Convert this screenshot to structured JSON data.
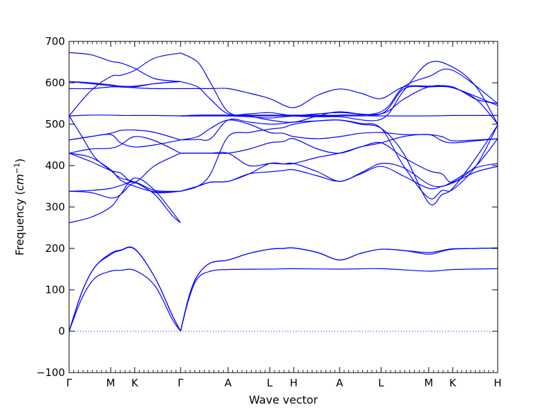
{
  "chart_data": {
    "type": "line",
    "title": "",
    "xlabel": "Wave vector",
    "ylabel_text": "Frequency (",
    "ylabel_unit": "cm",
    "ylabel_exp": "−1",
    "ylabel_close": ")",
    "ylim": [
      -100,
      700
    ],
    "yticks": [
      -100,
      0,
      100,
      200,
      300,
      400,
      500,
      600,
      700
    ],
    "xlim": [
      0,
      1
    ],
    "xticks": [
      {
        "label": "Γ",
        "x": 0.0
      },
      {
        "label": "M",
        "x": 0.097
      },
      {
        "label": "K",
        "x": 0.153
      },
      {
        "label": "Γ",
        "x": 0.26
      },
      {
        "label": "A",
        "x": 0.371
      },
      {
        "label": "L",
        "x": 0.468
      },
      {
        "label": "H",
        "x": 0.524
      },
      {
        "label": "A",
        "x": 0.631
      },
      {
        "label": "L",
        "x": 0.728
      },
      {
        "label": "M",
        "x": 0.839
      },
      {
        "label": "K",
        "x": 0.895
      },
      {
        "label": "H",
        "x": 1.0
      }
    ],
    "line_color": "#0000ff",
    "zero_line_color": "#0000ff",
    "series": [
      {
        "x": [
          0,
          0.03,
          0.06,
          0.097,
          0.12,
          0.153,
          0.2,
          0.24,
          0.26
        ],
        "values": [
          0,
          95,
          155,
          185,
          195,
          198,
          130,
          40,
          0
        ]
      },
      {
        "x": [
          0,
          0.03,
          0.06,
          0.097,
          0.12,
          0.153,
          0.2,
          0.24,
          0.26
        ],
        "values": [
          0,
          95,
          155,
          188,
          196,
          199,
          130,
          40,
          0
        ]
      },
      {
        "x": [
          0,
          0.03,
          0.06,
          0.097,
          0.12,
          0.153,
          0.2,
          0.24,
          0.26
        ],
        "values": [
          0,
          80,
          128,
          145,
          147,
          147,
          110,
          30,
          0
        ]
      },
      {
        "x": [
          0.26,
          0.28,
          0.3,
          0.33,
          0.371,
          0.42,
          0.468,
          0.5,
          0.524,
          0.58,
          0.631,
          0.68,
          0.728,
          0.78,
          0.839,
          0.87,
          0.895,
          0.95,
          1.0
        ],
        "values": [
          0,
          85,
          135,
          165,
          172,
          188,
          198,
          200,
          201,
          190,
          172,
          188,
          198,
          195,
          190,
          195,
          199,
          200,
          201
        ]
      },
      {
        "x": [
          0.26,
          0.28,
          0.3,
          0.33,
          0.371,
          0.42,
          0.468,
          0.5,
          0.524,
          0.58,
          0.631,
          0.68,
          0.728,
          0.78,
          0.839,
          0.87,
          0.895,
          0.95,
          1.0
        ],
        "values": [
          0,
          85,
          135,
          165,
          172,
          188,
          198,
          200,
          201,
          190,
          172,
          188,
          198,
          195,
          186,
          193,
          198,
          200,
          201
        ]
      },
      {
        "x": [
          0.26,
          0.28,
          0.3,
          0.33,
          0.371,
          0.468,
          0.524,
          0.631,
          0.728,
          0.839,
          0.895,
          1.0
        ],
        "values": [
          0,
          80,
          128,
          145,
          149,
          150,
          151,
          150,
          151,
          145,
          149,
          151
        ]
      },
      {
        "x": [
          0,
          0.05,
          0.097,
          0.12,
          0.153,
          0.2,
          0.26
        ],
        "values": [
          262,
          275,
          300,
          330,
          370,
          340,
          262
        ]
      },
      {
        "x": [
          0,
          0.05,
          0.097,
          0.12,
          0.153,
          0.2,
          0.26
        ],
        "values": [
          338,
          340,
          345,
          352,
          360,
          340,
          338
        ]
      },
      {
        "x": [
          0,
          0.05,
          0.097,
          0.12,
          0.153,
          0.2,
          0.26
        ],
        "values": [
          338,
          335,
          322,
          330,
          358,
          335,
          338
        ]
      },
      {
        "x": [
          0,
          0.05,
          0.097,
          0.12,
          0.153,
          0.2,
          0.26
        ],
        "values": [
          430,
          420,
          390,
          365,
          350,
          337,
          338
        ]
      },
      {
        "x": [
          0,
          0.05,
          0.097,
          0.12,
          0.153,
          0.2,
          0.26
        ],
        "values": [
          430,
          410,
          388,
          382,
          360,
          400,
          430
        ]
      },
      {
        "x": [
          0,
          0.05,
          0.097,
          0.12,
          0.153,
          0.2,
          0.26
        ],
        "values": [
          430,
          440,
          442,
          450,
          470,
          460,
          430
        ]
      },
      {
        "x": [
          0,
          0.05,
          0.097,
          0.12,
          0.153,
          0.2,
          0.26
        ],
        "values": [
          462,
          470,
          475,
          455,
          445,
          450,
          462
        ]
      },
      {
        "x": [
          0,
          0.05,
          0.097,
          0.12,
          0.153,
          0.2,
          0.26
        ],
        "values": [
          462,
          470,
          478,
          485,
          486,
          480,
          462
        ]
      },
      {
        "x": [
          0,
          0.05,
          0.097,
          0.12,
          0.153,
          0.2,
          0.26
        ],
        "values": [
          520,
          522,
          522,
          521,
          521,
          521,
          520
        ]
      },
      {
        "x": [
          0,
          0.03,
          0.06,
          0.097,
          0.12,
          0.153,
          0.2,
          0.24,
          0.26
        ],
        "values": [
          520,
          470,
          420,
          388,
          370,
          360,
          330,
          280,
          262
        ]
      },
      {
        "x": [
          0,
          0.05,
          0.097,
          0.12,
          0.153,
          0.2,
          0.26
        ],
        "values": [
          586,
          586,
          590,
          590,
          588,
          586,
          586
        ]
      },
      {
        "x": [
          0,
          0.05,
          0.097,
          0.12,
          0.153,
          0.2,
          0.26
        ],
        "values": [
          603,
          598,
          593,
          590,
          590,
          598,
          603
        ]
      },
      {
        "x": [
          0,
          0.05,
          0.097,
          0.12,
          0.153,
          0.2,
          0.26
        ],
        "values": [
          603,
          600,
          595,
          592,
          592,
          598,
          603
        ]
      },
      {
        "x": [
          0,
          0.05,
          0.097,
          0.12,
          0.153,
          0.2,
          0.26
        ],
        "values": [
          520,
          580,
          615,
          618,
          630,
          660,
          672
        ]
      },
      {
        "x": [
          0,
          0.05,
          0.097,
          0.12,
          0.153,
          0.2,
          0.26
        ],
        "values": [
          673,
          668,
          652,
          648,
          635,
          610,
          603
        ]
      },
      {
        "x": [
          0.26,
          0.3,
          0.33,
          0.371,
          0.42,
          0.468,
          0.5,
          0.524,
          0.58,
          0.631,
          0.68,
          0.728,
          0.78,
          0.839,
          0.87,
          0.895,
          0.95,
          1.0
        ],
        "values": [
          338,
          350,
          360,
          362,
          380,
          385,
          388,
          390,
          375,
          362,
          380,
          398,
          375,
          345,
          350,
          358,
          385,
          398
        ]
      },
      {
        "x": [
          0.26,
          0.3,
          0.33,
          0.371,
          0.42,
          0.468,
          0.5,
          0.524,
          0.58,
          0.631,
          0.68,
          0.728,
          0.78,
          0.839,
          0.87,
          0.895,
          0.95,
          1.0
        ],
        "values": [
          338,
          350,
          360,
          362,
          380,
          405,
          404,
          405,
          385,
          362,
          382,
          405,
          395,
          355,
          350,
          362,
          395,
          405
        ]
      },
      {
        "x": [
          0.26,
          0.3,
          0.33,
          0.371,
          0.42,
          0.468,
          0.5,
          0.524,
          0.58,
          0.631,
          0.68,
          0.728,
          0.78,
          0.839,
          0.87,
          0.895,
          0.95,
          1.0
        ],
        "values": [
          430,
          430,
          430,
          430,
          440,
          455,
          458,
          465,
          440,
          430,
          445,
          455,
          470,
          475,
          460,
          455,
          460,
          465
        ]
      },
      {
        "x": [
          0.26,
          0.3,
          0.33,
          0.371,
          0.42,
          0.468,
          0.5,
          0.524,
          0.58,
          0.631,
          0.68,
          0.728,
          0.78,
          0.839,
          0.87,
          0.895,
          0.95,
          1.0
        ],
        "values": [
          430,
          430,
          430,
          430,
          400,
          405,
          404,
          405,
          420,
          430,
          445,
          455,
          420,
          388,
          380,
          360,
          400,
          465
        ]
      },
      {
        "x": [
          0.26,
          0.3,
          0.33,
          0.371,
          0.42,
          0.468,
          0.5,
          0.524,
          0.58,
          0.631,
          0.68,
          0.728,
          0.78,
          0.839,
          0.87,
          0.895,
          0.95,
          1.0
        ],
        "values": [
          338,
          350,
          380,
          470,
          480,
          488,
          492,
          500,
          508,
          510,
          500,
          490,
          430,
          310,
          330,
          345,
          420,
          498
        ]
      },
      {
        "x": [
          0.26,
          0.3,
          0.33,
          0.371,
          0.42,
          0.468,
          0.5,
          0.524,
          0.58,
          0.631,
          0.68,
          0.728,
          0.78,
          0.839,
          0.87,
          0.895,
          0.95,
          1.0
        ],
        "values": [
          462,
          463,
          465,
          510,
          505,
          500,
          502,
          505,
          508,
          510,
          502,
          490,
          400,
          322,
          340,
          342,
          400,
          498
        ]
      },
      {
        "x": [
          0.26,
          0.3,
          0.33,
          0.371,
          0.42,
          0.468,
          0.5,
          0.524,
          0.58,
          0.631,
          0.68,
          0.728,
          0.78,
          0.839,
          0.87,
          0.895,
          0.95,
          1.0
        ],
        "values": [
          462,
          470,
          490,
          510,
          500,
          480,
          478,
          470,
          465,
          470,
          478,
          480,
          475,
          475,
          470,
          460,
          462,
          465
        ]
      },
      {
        "x": [
          0.26,
          0.3,
          0.371,
          0.468,
          0.524,
          0.631,
          0.728,
          0.839,
          0.895,
          1.0
        ],
        "values": [
          520,
          520,
          520,
          520,
          520,
          520,
          520,
          520,
          521,
          521
        ]
      },
      {
        "x": [
          0.26,
          0.3,
          0.371,
          0.42,
          0.468,
          0.524,
          0.58,
          0.631,
          0.728,
          0.78,
          0.839,
          0.895,
          1.0
        ],
        "values": [
          520,
          520,
          520,
          518,
          515,
          520,
          525,
          528,
          525,
          560,
          590,
          588,
          545
        ]
      },
      {
        "x": [
          0.26,
          0.3,
          0.371,
          0.42,
          0.468,
          0.524,
          0.58,
          0.631,
          0.728,
          0.78,
          0.839,
          0.895,
          1.0
        ],
        "values": [
          520,
          522,
          522,
          522,
          522,
          522,
          522,
          522,
          530,
          590,
          615,
          630,
          550
        ]
      },
      {
        "x": [
          0.26,
          0.3,
          0.33,
          0.371,
          0.42,
          0.468,
          0.524,
          0.58,
          0.631,
          0.68,
          0.728,
          0.78,
          0.839,
          0.895,
          0.95,
          1.0
        ],
        "values": [
          586,
          586,
          586,
          586,
          575,
          562,
          540,
          570,
          585,
          575,
          562,
          590,
          592,
          590,
          560,
          550
        ]
      },
      {
        "x": [
          0.26,
          0.3,
          0.33,
          0.371,
          0.42,
          0.468,
          0.524,
          0.58,
          0.631,
          0.728,
          0.78,
          0.839,
          0.895,
          0.95,
          1.0
        ],
        "values": [
          603,
          590,
          560,
          525,
          525,
          528,
          520,
          518,
          518,
          512,
          580,
          648,
          638,
          590,
          500
        ]
      },
      {
        "x": [
          0.26,
          0.3,
          0.33,
          0.371,
          0.42,
          0.468,
          0.524,
          0.58,
          0.631,
          0.728,
          0.78,
          0.839,
          0.895,
          0.95,
          1.0
        ],
        "values": [
          672,
          650,
          600,
          530,
          520,
          510,
          505,
          520,
          530,
          525,
          585,
          590,
          588,
          560,
          500
        ]
      }
    ]
  }
}
